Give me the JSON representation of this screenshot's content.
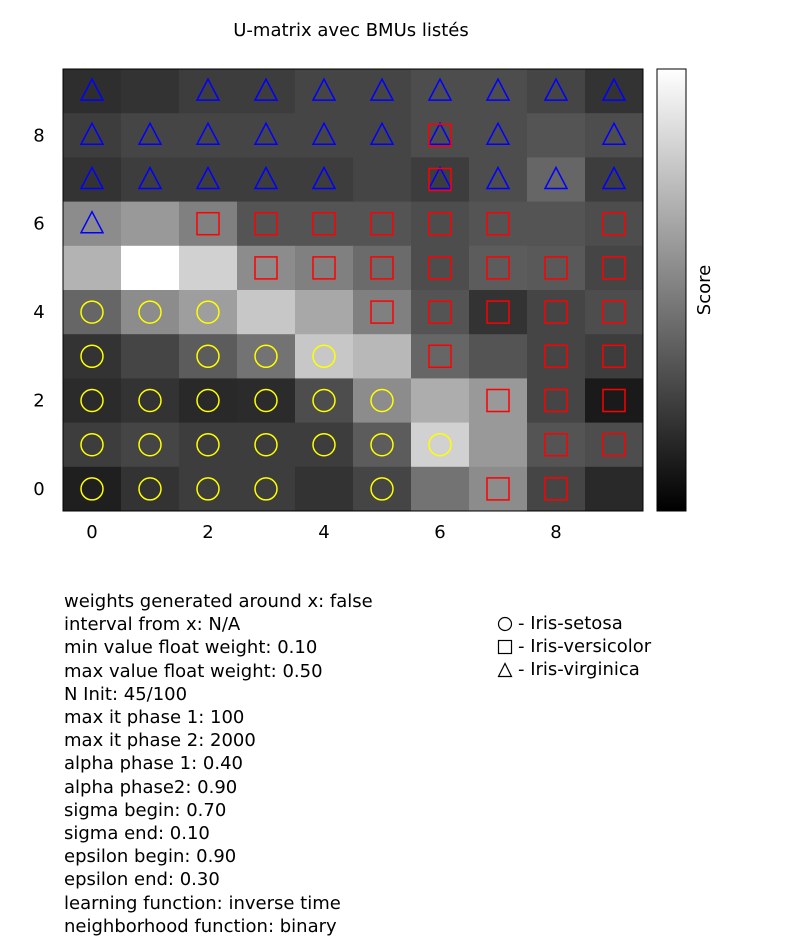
{
  "chart_data": {
    "type": "heatmap",
    "title": "U-matrix avec BMUs listés",
    "colorbar_label": "Score",
    "colormap": "gray",
    "grid_size": [
      10,
      10
    ],
    "xticks": [
      0,
      2,
      4,
      6,
      8
    ],
    "yticks": [
      0,
      2,
      4,
      6,
      8
    ],
    "values_rows_y9_to_y0": [
      [
        0.18,
        0.2,
        0.24,
        0.24,
        0.27,
        0.27,
        0.3,
        0.3,
        0.27,
        0.2
      ],
      [
        0.24,
        0.27,
        0.27,
        0.27,
        0.27,
        0.27,
        0.3,
        0.3,
        0.33,
        0.3
      ],
      [
        0.2,
        0.24,
        0.24,
        0.24,
        0.24,
        0.27,
        0.24,
        0.3,
        0.4,
        0.24
      ],
      [
        0.55,
        0.6,
        0.5,
        0.33,
        0.33,
        0.33,
        0.3,
        0.33,
        0.33,
        0.3
      ],
      [
        0.7,
        1.0,
        0.82,
        0.55,
        0.5,
        0.42,
        0.3,
        0.36,
        0.35,
        0.27
      ],
      [
        0.4,
        0.55,
        0.62,
        0.78,
        0.66,
        0.5,
        0.33,
        0.2,
        0.27,
        0.3
      ],
      [
        0.2,
        0.27,
        0.36,
        0.45,
        0.78,
        0.72,
        0.4,
        0.33,
        0.27,
        0.24
      ],
      [
        0.17,
        0.2,
        0.16,
        0.17,
        0.3,
        0.55,
        0.68,
        0.6,
        0.27,
        0.1
      ],
      [
        0.24,
        0.27,
        0.24,
        0.24,
        0.24,
        0.36,
        0.82,
        0.6,
        0.33,
        0.3
      ],
      [
        0.12,
        0.2,
        0.24,
        0.24,
        0.2,
        0.27,
        0.45,
        0.55,
        0.27,
        0.16
      ]
    ],
    "bmu_rows_y9_to_y0": [
      [
        "V",
        "",
        "V",
        "V",
        "V",
        "V",
        "V",
        "V",
        "V",
        "V"
      ],
      [
        "V",
        "V",
        "V",
        "V",
        "V",
        "V",
        "VS",
        "V",
        "",
        "V"
      ],
      [
        "V",
        "V",
        "V",
        "V",
        "V",
        "",
        "VS",
        "V",
        "V",
        "V"
      ],
      [
        "V",
        "",
        "S",
        "S",
        "S",
        "S",
        "S",
        "S",
        "",
        "S"
      ],
      [
        "",
        "",
        "",
        "S",
        "S",
        "S",
        "S",
        "S",
        "S",
        "S"
      ],
      [
        "O",
        "O",
        "O",
        "",
        "",
        "S",
        "S",
        "S",
        "S",
        "S"
      ],
      [
        "O",
        "",
        "O",
        "O",
        "O",
        "",
        "S",
        "",
        "S",
        "S"
      ],
      [
        "O",
        "O",
        "O",
        "O",
        "O",
        "O",
        "",
        "S",
        "S",
        "S"
      ],
      [
        "O",
        "O",
        "O",
        "O",
        "O",
        "O",
        "O",
        "",
        "S",
        "S"
      ],
      [
        "O",
        "O",
        "O",
        "O",
        "",
        "O",
        "",
        "S",
        "S",
        ""
      ]
    ],
    "legend": [
      {
        "marker": "circle",
        "label": "- Iris-setosa",
        "color": "#ffff00"
      },
      {
        "marker": "square",
        "label": "- Iris-versicolor",
        "color": "#ff0000"
      },
      {
        "marker": "triangle",
        "label": "- Iris-virginica",
        "color": "#0000ff"
      }
    ]
  },
  "params": [
    "weights generated around x: false",
    "interval from x: N/A",
    "min value float weight: 0.10",
    "max value float weight: 0.50",
    "N Init: 45/100",
    "max it phase 1: 100",
    "max it phase 2: 2000",
    "alpha phase 1: 0.40",
    "alpha phase2: 0.90",
    "sigma begin: 0.70",
    "sigma end: 0.10",
    "epsilon begin: 0.90",
    "epsilon end: 0.30",
    "learning function: inverse time",
    "neighborhood function: binary"
  ]
}
